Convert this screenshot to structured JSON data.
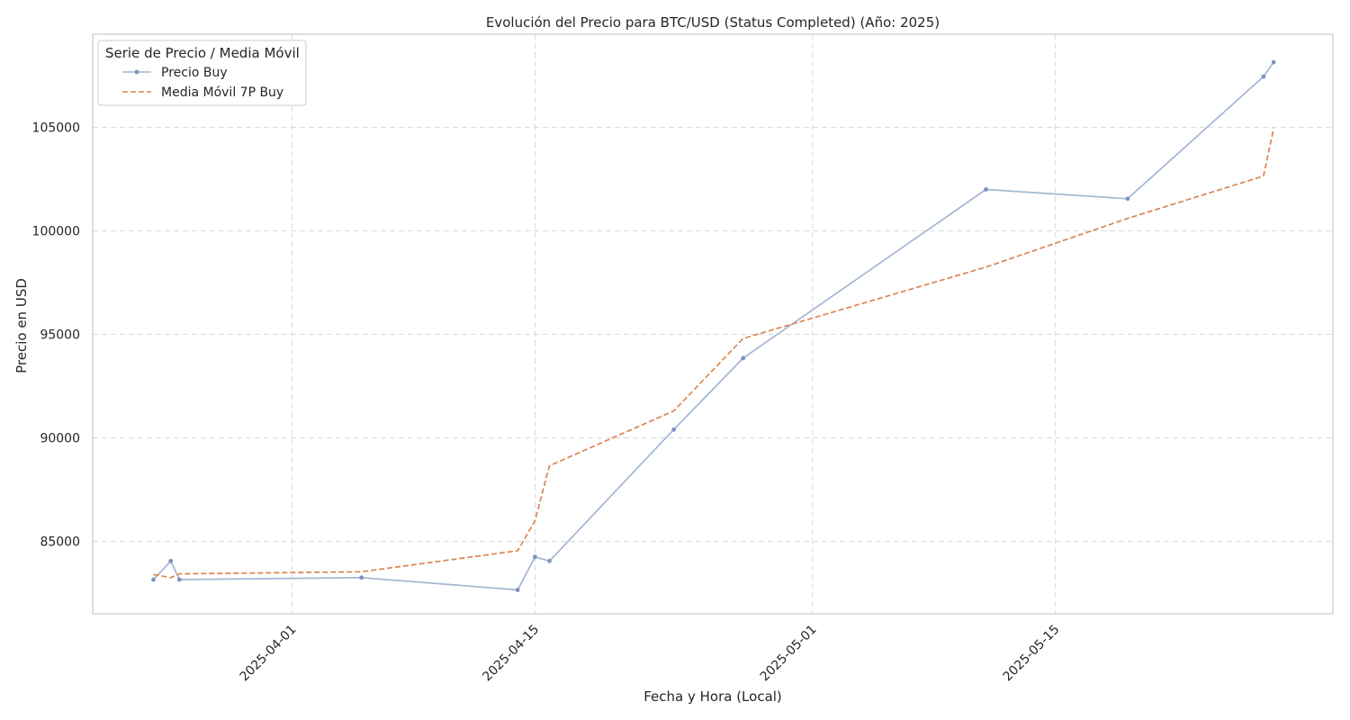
{
  "chart_data": {
    "type": "line",
    "title": "Evolución del Precio para BTC/USD (Status Completed) (Año: 2025)",
    "xlabel": "Fecha y Hora (Local)",
    "ylabel": "Precio en USD",
    "x_axis_type": "date",
    "xlim": [
      "2025-03-20T12:00",
      "2025-05-31T00:00"
    ],
    "ylim": [
      81500,
      109500
    ],
    "x_ticks": [
      "2025-04-01",
      "2025-04-15",
      "2025-05-01",
      "2025-05-15"
    ],
    "y_ticks": [
      85000,
      90000,
      95000,
      100000,
      105000
    ],
    "grid": true,
    "legend": {
      "title": "Serie de Precio / Media Móvil",
      "position": "top-left"
    },
    "series": [
      {
        "name": "Precio Buy",
        "color": "#a3b6d4",
        "style": "solid",
        "marker": "dot",
        "points": [
          {
            "x": "2025-03-24T00:00",
            "y": 83150
          },
          {
            "x": "2025-03-25T00:00",
            "y": 84050
          },
          {
            "x": "2025-03-25T12:00",
            "y": 83150
          },
          {
            "x": "2025-04-05T00:00",
            "y": 83250
          },
          {
            "x": "2025-04-14T00:00",
            "y": 82650
          },
          {
            "x": "2025-04-15T00:00",
            "y": 84250
          },
          {
            "x": "2025-04-15T20:00",
            "y": 84050
          },
          {
            "x": "2025-04-23T00:00",
            "y": 90400
          },
          {
            "x": "2025-04-27T00:00",
            "y": 93850
          },
          {
            "x": "2025-05-11T00:00",
            "y": 102000
          },
          {
            "x": "2025-05-19T04:00",
            "y": 101550
          },
          {
            "x": "2025-05-27T00:00",
            "y": 107450
          },
          {
            "x": "2025-05-27T14:00",
            "y": 108150
          }
        ]
      },
      {
        "name": "Media Móvil 7P Buy",
        "color": "#dd8452",
        "style": "dashed",
        "marker": "none",
        "points": [
          {
            "x": "2025-03-24T00:00",
            "y": 83400
          },
          {
            "x": "2025-03-25T00:00",
            "y": 83250
          },
          {
            "x": "2025-03-25T12:00",
            "y": 83430
          },
          {
            "x": "2025-04-05T00:00",
            "y": 83530
          },
          {
            "x": "2025-04-14T00:00",
            "y": 84550
          },
          {
            "x": "2025-04-15T00:00",
            "y": 86000
          },
          {
            "x": "2025-04-15T20:00",
            "y": 88650
          },
          {
            "x": "2025-04-23T00:00",
            "y": 91300
          },
          {
            "x": "2025-04-27T00:00",
            "y": 94800
          },
          {
            "x": "2025-05-11T00:00",
            "y": 98250
          },
          {
            "x": "2025-05-19T04:00",
            "y": 100600
          },
          {
            "x": "2025-05-27T00:00",
            "y": 102650
          },
          {
            "x": "2025-05-27T14:00",
            "y": 104950
          }
        ]
      }
    ]
  }
}
